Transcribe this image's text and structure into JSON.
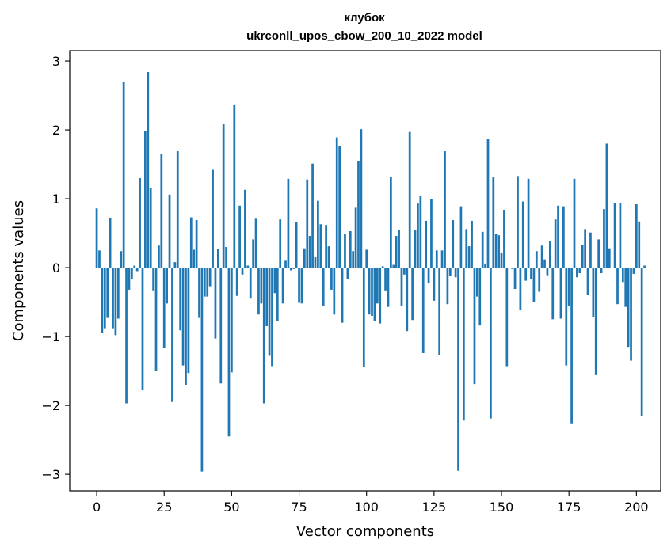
{
  "chart_data": {
    "type": "bar",
    "title_line1": "клубок",
    "title_line2": "ukrconll_upos_cbow_200_10_2022 model",
    "xlabel": "Vector components",
    "ylabel": "Components values",
    "xlim": [
      -10,
      209
    ],
    "ylim": [
      -3.24,
      3.15
    ],
    "xticks": [
      0,
      25,
      50,
      75,
      100,
      125,
      150,
      175,
      200
    ],
    "xtick_labels": [
      "0",
      "25",
      "50",
      "75",
      "100",
      "125",
      "150",
      "175",
      "200"
    ],
    "yticks": [
      -3,
      -2,
      -1,
      0,
      1,
      2,
      3
    ],
    "ytick_labels": [
      "−3",
      "−2",
      "−1",
      "0",
      "1",
      "2",
      "3"
    ],
    "bar_color": "#1f77b4",
    "grid": false,
    "values": [
      0.86,
      0.25,
      -0.95,
      -0.88,
      -0.73,
      0.72,
      -0.88,
      -0.98,
      -0.74,
      0.24,
      2.7,
      -1.97,
      -0.32,
      -0.17,
      0.03,
      -0.05,
      1.3,
      -1.78,
      1.98,
      2.84,
      1.15,
      -0.33,
      -1.5,
      0.32,
      1.65,
      -1.16,
      -0.52,
      1.06,
      -1.95,
      0.08,
      1.69,
      -0.91,
      -1.42,
      -1.7,
      -1.53,
      0.73,
      0.26,
      0.69,
      -0.73,
      -2.96,
      -0.42,
      -0.42,
      -0.27,
      1.42,
      -1.03,
      0.27,
      -1.68,
      2.08,
      0.3,
      -2.45,
      -1.52,
      2.37,
      -0.41,
      0.9,
      -0.1,
      1.13,
      0.03,
      -0.45,
      0.41,
      0.71,
      -0.68,
      -0.52,
      -1.97,
      -0.85,
      -1.28,
      -1.43,
      -0.37,
      -0.78,
      0.7,
      -0.52,
      0.1,
      1.29,
      -0.04,
      -0.02,
      0.66,
      -0.51,
      -0.52,
      0.28,
      1.28,
      0.46,
      1.51,
      0.16,
      0.97,
      0.63,
      -0.55,
      0.62,
      0.31,
      -0.32,
      -0.68,
      1.89,
      1.76,
      -0.8,
      0.49,
      -0.17,
      0.53,
      0.24,
      0.87,
      1.55,
      2.01,
      -1.44,
      0.26,
      -0.68,
      -0.7,
      -0.77,
      -0.52,
      -0.81,
      0.02,
      -0.33,
      -0.57,
      1.32,
      0.04,
      0.46,
      0.55,
      -0.55,
      -0.1,
      -0.92,
      1.97,
      -0.76,
      0.55,
      0.93,
      1.04,
      -1.24,
      0.68,
      -0.23,
      0.99,
      -0.48,
      0.25,
      -1.27,
      0.25,
      1.69,
      -0.53,
      -0.12,
      0.69,
      -0.14,
      -2.95,
      0.89,
      -2.22,
      0.56,
      0.31,
      0.68,
      -1.69,
      -0.42,
      -0.84,
      0.52,
      0.06,
      1.87,
      -2.19,
      1.31,
      0.49,
      0.47,
      0.22,
      0.84,
      -1.43,
      0.0,
      -0.02,
      -0.31,
      1.33,
      -0.62,
      0.96,
      -0.19,
      1.29,
      -0.16,
      -0.5,
      0.24,
      -0.35,
      0.32,
      0.12,
      -0.11,
      0.38,
      -0.75,
      0.7,
      0.9,
      -0.74,
      0.89,
      -1.42,
      -0.56,
      -2.26,
      1.29,
      -0.14,
      -0.08,
      0.33,
      0.56,
      -0.39,
      0.51,
      -0.72,
      -1.56,
      0.41,
      -0.08,
      0.85,
      1.8,
      0.28,
      0.0,
      0.94,
      -0.53,
      0.94,
      -0.21,
      -0.57,
      -1.15,
      -1.35,
      -0.09,
      0.92,
      0.67,
      -2.16,
      0.03
    ]
  }
}
